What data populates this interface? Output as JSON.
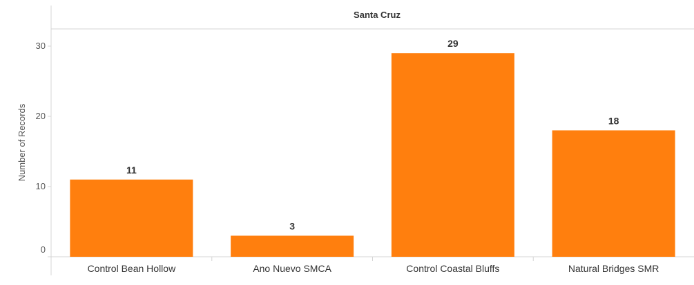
{
  "chart_data": {
    "type": "bar",
    "header": "Santa Cruz",
    "categories": [
      "Control Bean Hollow",
      "Ano Nuevo SMCA",
      "Control Coastal Bluffs",
      "Natural Bridges SMR"
    ],
    "values": [
      11,
      3,
      29,
      18
    ],
    "data_labels": [
      "11",
      "3",
      "29",
      "18"
    ],
    "ylabel": "Number of Records",
    "xlabel": "",
    "ylim": [
      0,
      33
    ],
    "yticks": [
      0,
      10,
      20,
      30
    ],
    "ytick_labels": [
      "0",
      "10",
      "20",
      "30"
    ],
    "grid": false,
    "bar_color": "#ff7f0e"
  }
}
